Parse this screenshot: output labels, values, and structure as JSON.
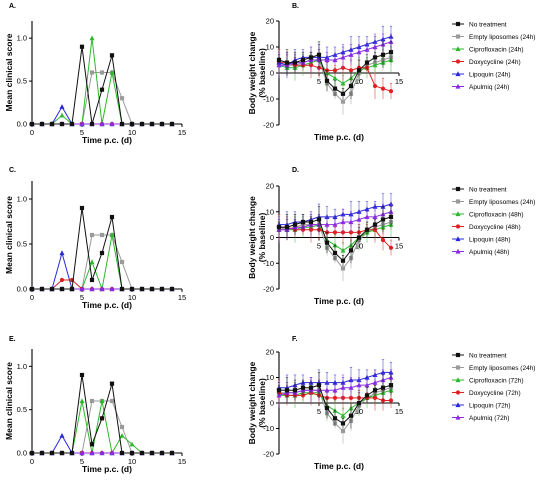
{
  "colors": {
    "No treatment": "#111111",
    "Empty liposomes": "#9a9a9a",
    "Ciprofloxacin": "#2eb82e",
    "Doxycycline": "#e02020",
    "Lipoquin": "#2929d6",
    "Apulmiq": "#8a2be2"
  },
  "chart_data": [
    {
      "panel": "A.",
      "type": "line",
      "xlabel": "Time p.c. (d)",
      "ylabel": "Mean clinical score",
      "xlim": [
        0,
        15
      ],
      "ylim": [
        0,
        1.2
      ],
      "xticks": [
        0,
        5,
        10,
        15
      ],
      "yticks": [
        0,
        0.5,
        1.0
      ],
      "ytick_labels": [
        "0.0",
        "0.5",
        "1.0"
      ],
      "grid": false,
      "x": [
        0,
        1,
        2,
        3,
        4,
        5,
        6,
        7,
        8,
        9,
        10,
        11,
        12,
        13,
        14
      ],
      "series": [
        {
          "name": "No treatment",
          "values": [
            0,
            0,
            0,
            0,
            0,
            0.9,
            0,
            0.4,
            0.8,
            0,
            0,
            0,
            0,
            0,
            0
          ]
        },
        {
          "name": "Empty liposomes",
          "values": [
            0,
            0,
            0,
            0,
            0,
            0,
            0.6,
            0.6,
            0.6,
            0.3,
            0,
            0,
            0,
            0,
            0
          ]
        },
        {
          "name": "Ciprofloxacin",
          "values": [
            0,
            0,
            0,
            0.1,
            0,
            0,
            1.0,
            0,
            0.6,
            0,
            0,
            0,
            0,
            0,
            0
          ]
        },
        {
          "name": "Doxycycline",
          "values": [
            0,
            0,
            0,
            0,
            0,
            0,
            0,
            0,
            0,
            0,
            0,
            0,
            0,
            0,
            0
          ]
        },
        {
          "name": "Lipoquin",
          "values": [
            0,
            0,
            0,
            0.2,
            0,
            0,
            0,
            0,
            0,
            0,
            0,
            0,
            0,
            0,
            0
          ]
        },
        {
          "name": "Apulmiq",
          "values": [
            0,
            0,
            0,
            0,
            0,
            0,
            0,
            0,
            0,
            0,
            0,
            0,
            0,
            0,
            0
          ]
        }
      ]
    },
    {
      "panel": "B.",
      "type": "line",
      "xlabel": "Time p.c. (d)",
      "ylabel": "Body weight change (% baseline)",
      "xlim": [
        0,
        15
      ],
      "ylim": [
        -20,
        20
      ],
      "xticks": [
        5,
        10,
        15
      ],
      "yticks": [
        -20,
        -10,
        0,
        10,
        20
      ],
      "grid": false,
      "x": [
        0,
        1,
        2,
        3,
        4,
        5,
        6,
        7,
        8,
        9,
        10,
        11,
        12,
        13,
        14
      ],
      "legend": [
        "No treatment",
        "Empty liposomes (24h)",
        "Ciprofloxacin (24h)",
        "Doxycycline (24h)",
        "Lipoquin (24h)",
        "Apulmiq (24h)"
      ],
      "legend_position": "right",
      "series": [
        {
          "name": "No treatment",
          "values": [
            5,
            4,
            4,
            5,
            6,
            7,
            -3,
            -6,
            -8,
            -5,
            1,
            4,
            6,
            7,
            8
          ]
        },
        {
          "name": "Empty liposomes",
          "values": [
            4,
            3,
            3,
            4,
            5,
            5,
            -4,
            -8,
            -11,
            -8,
            0,
            3,
            4,
            5,
            6
          ]
        },
        {
          "name": "Ciprofloxacin",
          "values": [
            3,
            2,
            2,
            3,
            4,
            5,
            0,
            -2,
            -4,
            -2,
            1,
            2,
            3,
            4,
            5
          ]
        },
        {
          "name": "Doxycycline",
          "values": [
            4,
            4,
            3,
            3,
            3,
            2,
            1,
            1,
            2,
            1,
            2,
            2,
            -5,
            -6,
            -7
          ]
        },
        {
          "name": "Lipoquin",
          "values": [
            4,
            3,
            5,
            6,
            6,
            6,
            6,
            7,
            8,
            9,
            10,
            11,
            12,
            13,
            14
          ]
        },
        {
          "name": "Apulmiq",
          "values": [
            3,
            3,
            4,
            4,
            5,
            5,
            5,
            5,
            6,
            7,
            8,
            9,
            10,
            11,
            12
          ]
        }
      ]
    },
    {
      "panel": "C.",
      "type": "line",
      "xlabel": "Time p.c. (d)",
      "ylabel": "Mean clinical score",
      "xlim": [
        0,
        15
      ],
      "ylim": [
        0,
        1.2
      ],
      "xticks": [
        0,
        5,
        10,
        15
      ],
      "yticks": [
        0,
        0.5,
        1.0
      ],
      "ytick_labels": [
        "0.0",
        "0.5",
        "1.0"
      ],
      "grid": false,
      "x": [
        0,
        1,
        2,
        3,
        4,
        5,
        6,
        7,
        8,
        9,
        10,
        11,
        12,
        13,
        14
      ],
      "series": [
        {
          "name": "No treatment",
          "values": [
            0,
            0,
            0,
            0,
            0,
            0.9,
            0.1,
            0.4,
            0.8,
            0,
            0,
            0,
            0,
            0,
            0
          ]
        },
        {
          "name": "Empty liposomes",
          "values": [
            0,
            0,
            0,
            0,
            0,
            0,
            0.6,
            0.6,
            0.6,
            0.3,
            0,
            0,
            0,
            0,
            0
          ]
        },
        {
          "name": "Ciprofloxacin",
          "values": [
            0,
            0,
            0,
            0,
            0,
            0,
            0.3,
            0,
            0.6,
            0,
            0,
            0,
            0,
            0,
            0
          ]
        },
        {
          "name": "Doxycycline",
          "values": [
            0,
            0,
            0,
            0.1,
            0.1,
            0,
            0,
            0,
            0,
            0,
            0,
            0,
            0,
            0,
            0
          ]
        },
        {
          "name": "Lipoquin",
          "values": [
            0,
            0,
            0,
            0.4,
            0,
            0,
            0,
            0,
            0,
            0,
            0,
            0,
            0,
            0,
            0
          ]
        },
        {
          "name": "Apulmiq",
          "values": [
            0,
            0,
            0,
            0,
            0,
            0,
            0,
            0,
            0,
            0,
            0,
            0,
            0,
            0,
            0
          ]
        }
      ]
    },
    {
      "panel": "D.",
      "type": "line",
      "xlabel": "Time p.c. (d)",
      "ylabel": "Body weight change (% baseline)",
      "xlim": [
        0,
        15
      ],
      "ylim": [
        -20,
        20
      ],
      "xticks": [
        5,
        10,
        15
      ],
      "yticks": [
        -20,
        -10,
        0,
        10,
        20
      ],
      "grid": false,
      "x": [
        0,
        1,
        2,
        3,
        4,
        5,
        6,
        7,
        8,
        9,
        10,
        11,
        12,
        13,
        14
      ],
      "legend": [
        "No treatment",
        "Empty liposomes (24h)",
        "Ciprofloxacin (48h)",
        "Doxycycline (48h)",
        "Lipoquin (48h)",
        "Apulmiq (48h)"
      ],
      "legend_position": "right",
      "series": [
        {
          "name": "No treatment",
          "values": [
            4,
            4,
            5,
            6,
            6,
            7,
            -2,
            -6,
            -9,
            -5,
            0,
            3,
            5,
            7,
            8
          ]
        },
        {
          "name": "Empty liposomes",
          "values": [
            4,
            3,
            4,
            5,
            5,
            5,
            -4,
            -8,
            -12,
            -8,
            -1,
            2,
            4,
            5,
            6
          ]
        },
        {
          "name": "Ciprofloxacin",
          "values": [
            3,
            3,
            3,
            4,
            4,
            5,
            -1,
            -3,
            -5,
            -3,
            0,
            2,
            3,
            4,
            5
          ]
        },
        {
          "name": "Doxycycline",
          "values": [
            4,
            4,
            3,
            3,
            3,
            3,
            2,
            2,
            2,
            2,
            2,
            3,
            3,
            -1,
            -4
          ]
        },
        {
          "name": "Lipoquin",
          "values": [
            5,
            5,
            6,
            6,
            7,
            8,
            8,
            8,
            9,
            9,
            10,
            11,
            12,
            12,
            13
          ]
        },
        {
          "name": "Apulmiq",
          "values": [
            3,
            3,
            4,
            4,
            5,
            5,
            5,
            5,
            6,
            6,
            7,
            8,
            8,
            9,
            10
          ]
        }
      ]
    },
    {
      "panel": "E.",
      "type": "line",
      "xlabel": "Time p.c. (d)",
      "ylabel": "Mean clinical score",
      "xlim": [
        0,
        15
      ],
      "ylim": [
        0,
        1.2
      ],
      "xticks": [
        0,
        5,
        10,
        15
      ],
      "yticks": [
        0,
        0.5,
        1.0
      ],
      "ytick_labels": [
        "0.0",
        "0.5",
        "1.0"
      ],
      "grid": false,
      "x": [
        0,
        1,
        2,
        3,
        4,
        5,
        6,
        7,
        8,
        9,
        10,
        11,
        12,
        13,
        14
      ],
      "series": [
        {
          "name": "No treatment",
          "values": [
            0,
            0,
            0,
            0,
            0,
            0.9,
            0.1,
            0.4,
            0.8,
            0,
            0,
            0,
            0,
            0,
            0
          ]
        },
        {
          "name": "Empty liposomes",
          "values": [
            0,
            0,
            0,
            0,
            0,
            0,
            0.6,
            0.6,
            0.6,
            0.3,
            0,
            0,
            0,
            0,
            0
          ]
        },
        {
          "name": "Ciprofloxacin",
          "values": [
            0,
            0,
            0,
            0,
            0,
            0.6,
            0,
            0.6,
            0,
            0.2,
            0.1,
            0,
            0,
            0,
            0
          ]
        },
        {
          "name": "Doxycycline",
          "values": [
            0,
            0,
            0,
            0,
            0,
            0,
            0,
            0,
            0,
            0,
            0,
            0,
            0,
            0,
            0
          ]
        },
        {
          "name": "Lipoquin",
          "values": [
            0,
            0,
            0,
            0.2,
            0,
            0,
            0,
            0,
            0,
            0,
            0,
            0,
            0,
            0,
            0
          ]
        },
        {
          "name": "Apulmiq",
          "values": [
            0,
            0,
            0,
            0,
            0,
            0,
            0,
            0,
            0,
            0,
            0,
            0,
            0,
            0,
            0
          ]
        }
      ]
    },
    {
      "panel": "F.",
      "type": "line",
      "xlabel": "Time p.c. (d)",
      "ylabel": "Body weight change (% baseline)",
      "xlim": [
        0,
        15
      ],
      "ylim": [
        -20,
        20
      ],
      "xticks": [
        5,
        10,
        15
      ],
      "yticks": [
        -20,
        -10,
        0,
        10,
        20
      ],
      "grid": false,
      "x": [
        0,
        1,
        2,
        3,
        4,
        5,
        6,
        7,
        8,
        9,
        10,
        11,
        12,
        13,
        14
      ],
      "legend": [
        "No treatment",
        "Empty liposomes (24h)",
        "Ciprofloxacin (72h)",
        "Doxycycline (72h)",
        "Lipoquin (72h)",
        "Apulmiq (72h)"
      ],
      "legend_position": "right",
      "series": [
        {
          "name": "No treatment",
          "values": [
            5,
            5,
            5,
            6,
            6,
            7,
            -2,
            -6,
            -8,
            -5,
            0,
            3,
            5,
            6,
            7
          ]
        },
        {
          "name": "Empty liposomes",
          "values": [
            4,
            4,
            4,
            5,
            5,
            5,
            -4,
            -8,
            -11,
            -7,
            -1,
            2,
            4,
            5,
            6
          ]
        },
        {
          "name": "Ciprofloxacin",
          "values": [
            3,
            3,
            3,
            4,
            4,
            4,
            -1,
            -3,
            -5,
            -2,
            0,
            2,
            3,
            4,
            5
          ]
        },
        {
          "name": "Doxycycline",
          "values": [
            4,
            3,
            3,
            3,
            4,
            3,
            2,
            2,
            2,
            2,
            2,
            2,
            2,
            1,
            1
          ]
        },
        {
          "name": "Lipoquin",
          "values": [
            6,
            6,
            7,
            8,
            8,
            8,
            8,
            8,
            8,
            9,
            9,
            10,
            11,
            12,
            12
          ]
        },
        {
          "name": "Apulmiq",
          "values": [
            3,
            4,
            4,
            5,
            5,
            5,
            5,
            5,
            6,
            6,
            7,
            7,
            8,
            9,
            10
          ]
        }
      ]
    }
  ]
}
